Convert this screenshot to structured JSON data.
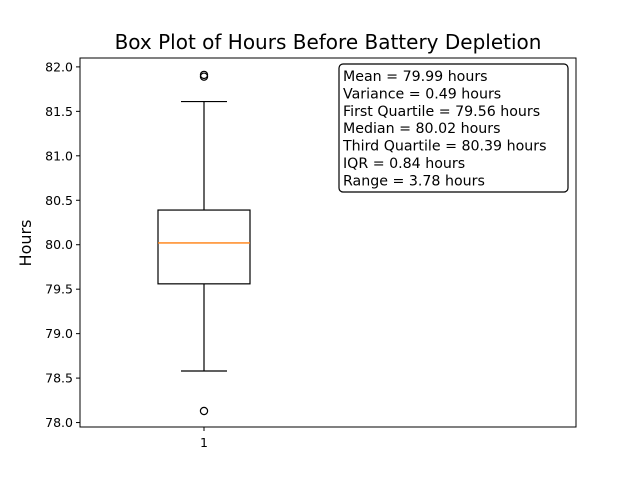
{
  "chart_data": {
    "type": "box",
    "title": "Box Plot of Hours Before Battery Depletion",
    "xlabel": "",
    "ylabel": "Hours",
    "categories": [
      "1"
    ],
    "ylim": [
      77.95,
      82.1
    ],
    "yticks": [
      "78.0",
      "78.5",
      "79.0",
      "79.5",
      "80.0",
      "80.5",
      "81.0",
      "81.5",
      "82.0"
    ],
    "series": [
      {
        "whisker_low": 78.58,
        "q1": 79.56,
        "median": 80.02,
        "q3": 80.39,
        "whisker_high": 81.61,
        "outliers": [
          78.13,
          81.89,
          81.91
        ]
      }
    ],
    "stats_lines": [
      "Mean = 79.99 hours",
      "Variance = 0.49 hours",
      "First Quartile = 79.56 hours",
      "Median = 80.02 hours",
      "Third Quartile = 80.39 hours",
      "IQR = 0.84 hours",
      "Range = 3.78 hours"
    ],
    "stats_box_position": "top-right",
    "grid": false,
    "colors": {
      "median": "#ff7f0e",
      "box": "#000000",
      "background": "#ffffff"
    }
  }
}
